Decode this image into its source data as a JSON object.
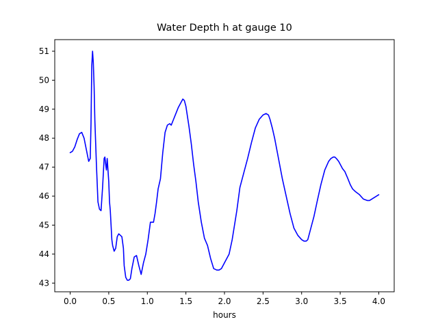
{
  "chart_data": {
    "type": "line",
    "title": "Water Depth h at gauge 10",
    "xlabel": "hours",
    "ylabel": "",
    "xlim": [
      -0.2,
      4.2
    ],
    "ylim": [
      42.7,
      51.4
    ],
    "xticks": [
      0.0,
      0.5,
      1.0,
      1.5,
      2.0,
      2.5,
      3.0,
      3.5,
      4.0
    ],
    "xtick_labels": [
      "0.0",
      "0.5",
      "1.0",
      "1.5",
      "2.0",
      "2.5",
      "3.0",
      "3.5",
      "4.0"
    ],
    "yticks": [
      43,
      44,
      45,
      46,
      47,
      48,
      49,
      50,
      51
    ],
    "ytick_labels": [
      "43",
      "44",
      "45",
      "46",
      "47",
      "48",
      "49",
      "50",
      "51"
    ],
    "grid": false,
    "legend": false,
    "series": [
      {
        "color": "#0000ff",
        "x": [
          0.0,
          0.03,
          0.06,
          0.09,
          0.12,
          0.15,
          0.18,
          0.21,
          0.24,
          0.26,
          0.27,
          0.28,
          0.29,
          0.3,
          0.31,
          0.32,
          0.34,
          0.36,
          0.38,
          0.4,
          0.42,
          0.44,
          0.45,
          0.46,
          0.47,
          0.48,
          0.49,
          0.5,
          0.51,
          0.52,
          0.53,
          0.54,
          0.55,
          0.57,
          0.59,
          0.61,
          0.63,
          0.65,
          0.67,
          0.69,
          0.7,
          0.72,
          0.74,
          0.76,
          0.78,
          0.8,
          0.83,
          0.86,
          0.89,
          0.92,
          0.95,
          0.98,
          1.01,
          1.04,
          1.06,
          1.08,
          1.1,
          1.12,
          1.14,
          1.17,
          1.2,
          1.23,
          1.26,
          1.29,
          1.31,
          1.34,
          1.37,
          1.4,
          1.43,
          1.46,
          1.48,
          1.5,
          1.52,
          1.54,
          1.57,
          1.6,
          1.63,
          1.66,
          1.7,
          1.74,
          1.78,
          1.82,
          1.86,
          1.9,
          1.93,
          1.96,
          2.0,
          2.03,
          2.06,
          2.1,
          2.13,
          2.16,
          2.2,
          2.25,
          2.3,
          2.35,
          2.4,
          2.45,
          2.5,
          2.54,
          2.57,
          2.59,
          2.62,
          2.65,
          2.7,
          2.75,
          2.8,
          2.85,
          2.9,
          2.95,
          3.0,
          3.03,
          3.06,
          3.08,
          3.1,
          3.13,
          3.16,
          3.2,
          3.25,
          3.3,
          3.35,
          3.38,
          3.41,
          3.43,
          3.45,
          3.48,
          3.5,
          3.53,
          3.56,
          3.6,
          3.63,
          3.66,
          3.7,
          3.75,
          3.8,
          3.85,
          3.88,
          3.91,
          3.94,
          3.97,
          4.0
        ],
        "y": [
          47.5,
          47.55,
          47.7,
          47.95,
          48.15,
          48.2,
          48.0,
          47.6,
          47.2,
          47.3,
          48.5,
          50.5,
          51.0,
          50.6,
          49.8,
          48.6,
          47.1,
          45.8,
          45.55,
          45.5,
          46.3,
          47.3,
          47.35,
          47.1,
          46.9,
          47.3,
          46.9,
          46.5,
          45.8,
          45.5,
          45.0,
          44.5,
          44.3,
          44.1,
          44.2,
          44.6,
          44.7,
          44.65,
          44.6,
          44.2,
          43.6,
          43.2,
          43.1,
          43.1,
          43.15,
          43.5,
          43.9,
          43.95,
          43.6,
          43.3,
          43.7,
          44.0,
          44.5,
          45.1,
          45.1,
          45.1,
          45.4,
          45.8,
          46.25,
          46.6,
          47.5,
          48.2,
          48.45,
          48.5,
          48.45,
          48.65,
          48.85,
          49.05,
          49.2,
          49.35,
          49.3,
          49.1,
          48.75,
          48.4,
          47.8,
          47.1,
          46.5,
          45.8,
          45.1,
          44.55,
          44.3,
          43.85,
          43.5,
          43.45,
          43.45,
          43.5,
          43.7,
          43.85,
          44.0,
          44.5,
          45.0,
          45.5,
          46.3,
          46.8,
          47.3,
          47.85,
          48.35,
          48.65,
          48.8,
          48.85,
          48.8,
          48.65,
          48.35,
          48.0,
          47.3,
          46.6,
          46.0,
          45.4,
          44.9,
          44.65,
          44.5,
          44.45,
          44.45,
          44.5,
          44.7,
          45.0,
          45.3,
          45.8,
          46.4,
          46.9,
          47.2,
          47.3,
          47.35,
          47.35,
          47.3,
          47.2,
          47.1,
          46.95,
          46.85,
          46.6,
          46.4,
          46.25,
          46.15,
          46.05,
          45.9,
          45.85,
          45.85,
          45.9,
          45.95,
          46.0,
          46.05
        ]
      }
    ]
  }
}
